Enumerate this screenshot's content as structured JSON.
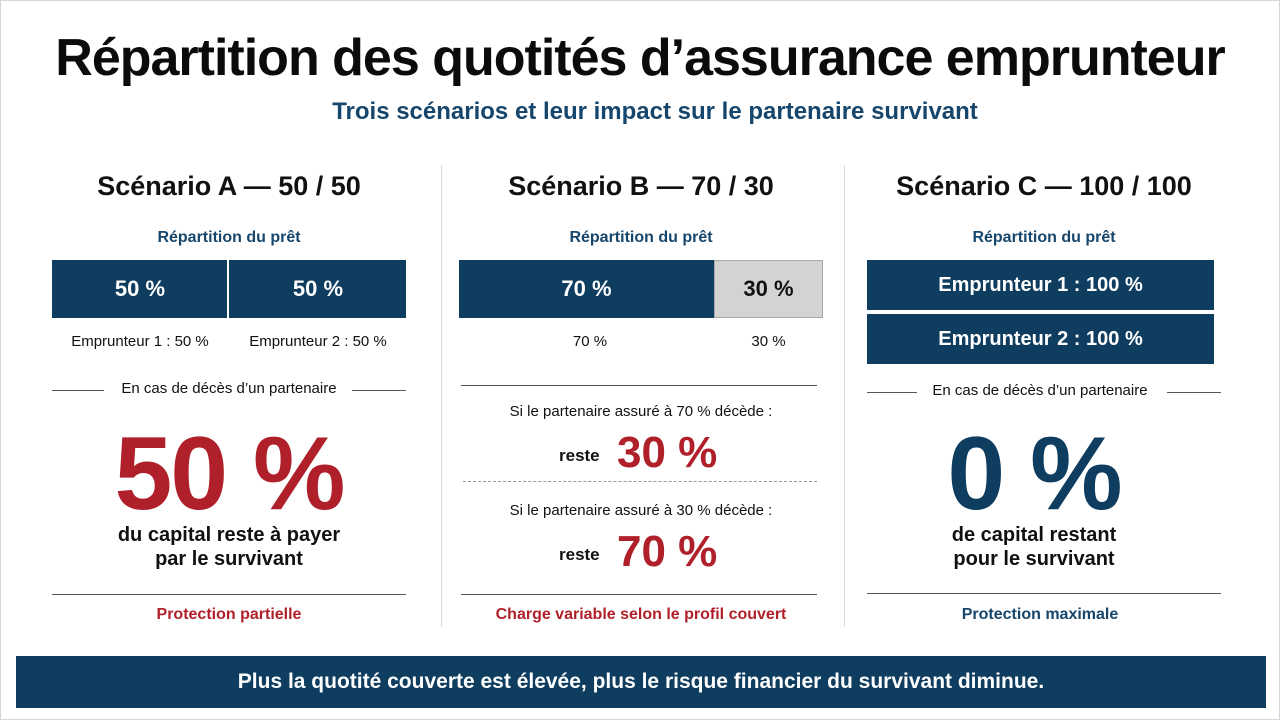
{
  "title": "Répartition des quotités d’assurance emprunteur",
  "subtitle": "Trois scénarios et leur impact sur le partenaire survivant",
  "scenarios": {
    "a": {
      "title": "Scénario A — 50 / 50",
      "split_heading": "Répartition du prêt",
      "bar_left": "50 %",
      "bar_right": "50 %",
      "label_left": "Emprunteur 1 : 50 %",
      "label_right": "Emprunteur 2 : 50 %",
      "case_heading": "En cas de décès d’un partenaire",
      "big_value": "50 %",
      "desc_line1": "du capital reste à payer",
      "desc_line2": "par le survivant",
      "footer": "Protection partielle"
    },
    "b": {
      "title": "Scénario B — 70 / 30",
      "split_heading": "Répartition du prêt",
      "bar_left": "70 %",
      "bar_right": "30 %",
      "label_left": "70 %",
      "label_right": "30 %",
      "case1_text": "Si le partenaire assuré à 70 % décède :",
      "case1_label": "reste",
      "case1_value": "30 %",
      "case2_text": "Si le partenaire assuré à 30 % décède :",
      "case2_label": "reste",
      "case2_value": "70 %",
      "footer": "Charge variable selon le profil couvert"
    },
    "c": {
      "title": "Scénario C — 100 / 100",
      "split_heading": "Répartition du prêt",
      "bar_top": "Emprunteur 1 : 100 %",
      "bar_bottom": "Emprunteur 2 : 100 %",
      "case_heading": "En cas de décès d’un partenaire",
      "big_value": "0 %",
      "desc_line1": "de capital restant",
      "desc_line2": "pour le survivant",
      "footer": "Protection maximale"
    }
  },
  "banner": "Plus la quotité couverte est élevée, plus le risque financier du survivant diminue.",
  "colors": {
    "navy": "#0f3d60",
    "accent_red": "#b0202a",
    "heading_blue": "#16466b",
    "light_gray": "#d3d3d3"
  }
}
